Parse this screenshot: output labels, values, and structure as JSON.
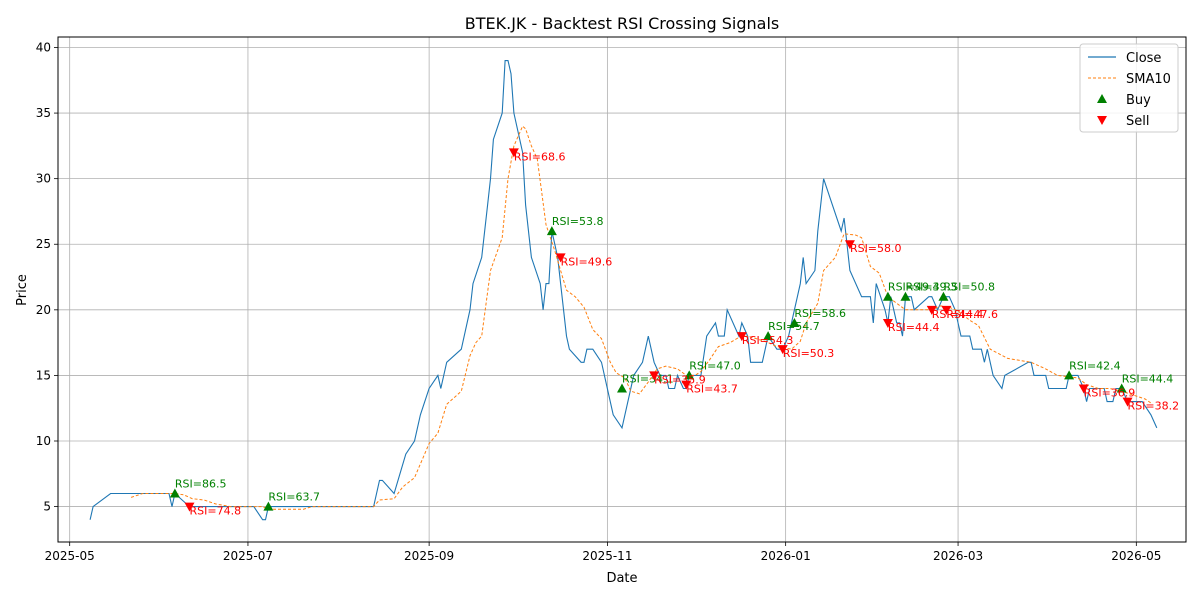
{
  "chart_data": {
    "type": "line",
    "title": "BTEK.JK - Backtest RSI Crossing Signals",
    "xlabel": "Date",
    "ylabel": "Price",
    "xlim": [
      "2025-04-27",
      "2026-05-18"
    ],
    "ylim": [
      2.3,
      40.8
    ],
    "x_ticks": [
      "2025-05-01",
      "2025-07-01",
      "2025-09-01",
      "2025-11-01",
      "2026-01-01",
      "2026-03-01",
      "2026-05-01"
    ],
    "x_tick_labels": [
      "2025-05",
      "2025-07",
      "2025-09",
      "2025-11",
      "2026-01",
      "2026-03",
      "2026-05"
    ],
    "y_ticks": [
      5,
      10,
      15,
      20,
      25,
      30,
      35,
      40
    ],
    "grid": true,
    "legend_position": "top-right",
    "legend": [
      "Close",
      "SMA10",
      "Buy",
      "Sell"
    ],
    "colors": {
      "close": "#1f77b4",
      "sma": "#ff7f0e",
      "buy": "#008000",
      "sell": "#ff0000",
      "grid": "#b0b0b0"
    },
    "series": [
      {
        "name": "Close",
        "style": "solid",
        "points": [
          [
            "2025-05-08",
            4.0
          ],
          [
            "2025-05-09",
            5.0
          ],
          [
            "2025-05-15",
            6.0
          ],
          [
            "2025-06-04",
            6.0
          ],
          [
            "2025-06-05",
            5.0
          ],
          [
            "2025-06-06",
            6.0
          ],
          [
            "2025-06-11",
            5.0
          ],
          [
            "2025-07-03",
            5.0
          ],
          [
            "2025-07-06",
            4.0
          ],
          [
            "2025-07-07",
            4.0
          ],
          [
            "2025-07-08",
            5.0
          ],
          [
            "2025-08-13",
            5.0
          ],
          [
            "2025-08-15",
            7.0
          ],
          [
            "2025-08-16",
            7.0
          ],
          [
            "2025-08-20",
            6.0
          ],
          [
            "2025-08-24",
            9.0
          ],
          [
            "2025-08-27",
            10.0
          ],
          [
            "2025-08-29",
            12.0
          ],
          [
            "2025-09-01",
            14.0
          ],
          [
            "2025-09-04",
            15.0
          ],
          [
            "2025-09-05",
            14.0
          ],
          [
            "2025-09-07",
            16.0
          ],
          [
            "2025-09-12",
            17.0
          ],
          [
            "2025-09-15",
            20.0
          ],
          [
            "2025-09-16",
            22.0
          ],
          [
            "2025-09-19",
            24.0
          ],
          [
            "2025-09-21",
            28.0
          ],
          [
            "2025-09-22",
            30.0
          ],
          [
            "2025-09-23",
            33.0
          ],
          [
            "2025-09-26",
            35.0
          ],
          [
            "2025-09-27",
            39.0
          ],
          [
            "2025-09-28",
            39.0
          ],
          [
            "2025-09-29",
            38.0
          ],
          [
            "2025-09-30",
            35.0
          ],
          [
            "2025-10-03",
            32.0
          ],
          [
            "2025-10-04",
            28.0
          ],
          [
            "2025-10-06",
            24.0
          ],
          [
            "2025-10-09",
            22.0
          ],
          [
            "2025-10-10",
            20.0
          ],
          [
            "2025-10-11",
            22.0
          ],
          [
            "2025-10-12",
            22.0
          ],
          [
            "2025-10-13",
            26.0
          ],
          [
            "2025-10-15",
            24.0
          ],
          [
            "2025-10-16",
            22.0
          ],
          [
            "2025-10-18",
            18.0
          ],
          [
            "2025-10-19",
            17.0
          ],
          [
            "2025-10-23",
            16.0
          ],
          [
            "2025-10-24",
            16.0
          ],
          [
            "2025-10-25",
            17.0
          ],
          [
            "2025-10-27",
            17.0
          ],
          [
            "2025-10-30",
            16.0
          ],
          [
            "2025-11-03",
            12.0
          ],
          [
            "2025-11-06",
            11.0
          ],
          [
            "2025-11-09",
            14.0
          ],
          [
            "2025-11-10",
            15.0
          ],
          [
            "2025-11-13",
            16.0
          ],
          [
            "2025-11-15",
            18.0
          ],
          [
            "2025-11-17",
            16.0
          ],
          [
            "2025-11-19",
            15.0
          ],
          [
            "2025-11-21",
            15.0
          ],
          [
            "2025-11-22",
            14.0
          ],
          [
            "2025-11-24",
            14.0
          ],
          [
            "2025-11-25",
            15.0
          ],
          [
            "2025-11-27",
            14.0
          ],
          [
            "2025-11-28",
            14.0
          ],
          [
            "2025-11-29",
            15.0
          ],
          [
            "2025-12-03",
            15.0
          ],
          [
            "2025-12-05",
            18.0
          ],
          [
            "2025-12-08",
            19.0
          ],
          [
            "2025-12-09",
            18.0
          ],
          [
            "2025-12-11",
            18.0
          ],
          [
            "2025-12-12",
            20.0
          ],
          [
            "2025-12-16",
            18.0
          ],
          [
            "2025-12-17",
            19.0
          ],
          [
            "2025-12-19",
            18.0
          ],
          [
            "2025-12-20",
            16.0
          ],
          [
            "2025-12-24",
            16.0
          ],
          [
            "2025-12-26",
            18.0
          ],
          [
            "2025-12-29",
            17.0
          ],
          [
            "2025-12-31",
            17.0
          ],
          [
            "2026-01-02",
            18.0
          ],
          [
            "2026-01-03",
            19.0
          ],
          [
            "2026-01-06",
            22.0
          ],
          [
            "2026-01-07",
            24.0
          ],
          [
            "2026-01-08",
            22.0
          ],
          [
            "2026-01-11",
            23.0
          ],
          [
            "2026-01-12",
            26.0
          ],
          [
            "2026-01-14",
            30.0
          ],
          [
            "2026-01-17",
            28.0
          ],
          [
            "2026-01-20",
            26.0
          ],
          [
            "2026-01-21",
            27.0
          ],
          [
            "2026-01-22",
            25.0
          ],
          [
            "2026-01-23",
            23.0
          ],
          [
            "2026-01-27",
            21.0
          ],
          [
            "2026-01-30",
            21.0
          ],
          [
            "2026-01-31",
            19.0
          ],
          [
            "2026-02-01",
            22.0
          ],
          [
            "2026-02-04",
            20.0
          ],
          [
            "2026-02-05",
            19.0
          ],
          [
            "2026-02-06",
            21.0
          ],
          [
            "2026-02-08",
            19.0
          ],
          [
            "2026-02-09",
            19.0
          ],
          [
            "2026-02-10",
            18.0
          ],
          [
            "2026-02-11",
            21.0
          ],
          [
            "2026-02-13",
            21.0
          ],
          [
            "2026-02-14",
            20.0
          ],
          [
            "2026-02-19",
            21.0
          ],
          [
            "2026-02-20",
            21.0
          ],
          [
            "2026-02-22",
            20.0
          ],
          [
            "2026-02-24",
            21.0
          ],
          [
            "2026-02-26",
            21.0
          ],
          [
            "2026-02-28",
            20.0
          ],
          [
            "2026-03-02",
            18.0
          ],
          [
            "2026-03-05",
            18.0
          ],
          [
            "2026-03-06",
            17.0
          ],
          [
            "2026-03-09",
            17.0
          ],
          [
            "2026-03-10",
            16.0
          ],
          [
            "2026-03-11",
            17.0
          ],
          [
            "2026-03-13",
            15.0
          ],
          [
            "2026-03-16",
            14.0
          ],
          [
            "2026-03-17",
            15.0
          ],
          [
            "2026-03-25",
            16.0
          ],
          [
            "2026-03-26",
            16.0
          ],
          [
            "2026-03-27",
            15.0
          ],
          [
            "2026-03-31",
            15.0
          ],
          [
            "2026-04-01",
            14.0
          ],
          [
            "2026-04-07",
            14.0
          ],
          [
            "2026-04-08",
            15.0
          ],
          [
            "2026-04-09",
            15.0
          ],
          [
            "2026-04-11",
            15.0
          ],
          [
            "2026-04-13",
            14.0
          ],
          [
            "2026-04-14",
            13.0
          ],
          [
            "2026-04-15",
            14.0
          ],
          [
            "2026-04-20",
            14.0
          ],
          [
            "2026-04-21",
            13.0
          ],
          [
            "2026-04-23",
            13.0
          ],
          [
            "2026-04-24",
            14.0
          ],
          [
            "2026-04-26",
            14.0
          ],
          [
            "2026-04-28",
            13.0
          ],
          [
            "2026-04-30",
            13.0
          ],
          [
            "2026-05-03",
            13.0
          ],
          [
            "2026-05-06",
            12.0
          ],
          [
            "2026-05-08",
            11.0
          ]
        ]
      },
      {
        "name": "SMA10",
        "style": "dashed",
        "points": [
          [
            "2025-05-22",
            5.7
          ],
          [
            "2025-05-26",
            6.0
          ],
          [
            "2025-06-06",
            6.0
          ],
          [
            "2025-06-09",
            5.9
          ],
          [
            "2025-06-12",
            5.6
          ],
          [
            "2025-06-16",
            5.5
          ],
          [
            "2025-06-20",
            5.2
          ],
          [
            "2025-06-25",
            5.0
          ],
          [
            "2025-07-06",
            5.0
          ],
          [
            "2025-07-08",
            4.8
          ],
          [
            "2025-07-20",
            4.8
          ],
          [
            "2025-07-23",
            5.0
          ],
          [
            "2025-08-13",
            5.0
          ],
          [
            "2025-08-15",
            5.5
          ],
          [
            "2025-08-20",
            5.6
          ],
          [
            "2025-08-23",
            6.5
          ],
          [
            "2025-08-27",
            7.2
          ],
          [
            "2025-09-01",
            9.8
          ],
          [
            "2025-09-04",
            10.6
          ],
          [
            "2025-09-07",
            12.8
          ],
          [
            "2025-09-12",
            13.8
          ],
          [
            "2025-09-15",
            16.5
          ],
          [
            "2025-09-17",
            17.5
          ],
          [
            "2025-09-19",
            18.0
          ],
          [
            "2025-09-22",
            23.0
          ],
          [
            "2025-09-26",
            25.5
          ],
          [
            "2025-09-28",
            30.0
          ],
          [
            "2025-09-30",
            32.5
          ],
          [
            "2025-10-03",
            34.0
          ],
          [
            "2025-10-04",
            33.8
          ],
          [
            "2025-10-06",
            32.5
          ],
          [
            "2025-10-08",
            31.5
          ],
          [
            "2025-10-11",
            26.5
          ],
          [
            "2025-10-14",
            24.5
          ],
          [
            "2025-10-16",
            23.0
          ],
          [
            "2025-10-18",
            21.5
          ],
          [
            "2025-10-21",
            21.0
          ],
          [
            "2025-10-24",
            20.2
          ],
          [
            "2025-10-27",
            18.5
          ],
          [
            "2025-10-30",
            17.8
          ],
          [
            "2025-11-02",
            16.0
          ],
          [
            "2025-11-04",
            15.2
          ],
          [
            "2025-11-07",
            14.8
          ],
          [
            "2025-11-09",
            13.8
          ],
          [
            "2025-11-12",
            13.6
          ],
          [
            "2025-11-15",
            14.5
          ],
          [
            "2025-11-18",
            15.5
          ],
          [
            "2025-11-21",
            15.7
          ],
          [
            "2025-11-25",
            15.5
          ],
          [
            "2025-11-28",
            15.0
          ],
          [
            "2025-12-01",
            15.0
          ],
          [
            "2025-12-03",
            15.3
          ],
          [
            "2025-12-06",
            16.2
          ],
          [
            "2025-12-09",
            17.2
          ],
          [
            "2025-12-13",
            17.5
          ],
          [
            "2025-12-16",
            17.9
          ],
          [
            "2025-12-19",
            18.0
          ],
          [
            "2025-12-22",
            17.8
          ],
          [
            "2025-12-26",
            17.5
          ],
          [
            "2025-12-29",
            17.2
          ],
          [
            "2026-01-03",
            17.0
          ],
          [
            "2026-01-06",
            17.6
          ],
          [
            "2026-01-08",
            19.0
          ],
          [
            "2026-01-12",
            20.5
          ],
          [
            "2026-01-14",
            23.0
          ],
          [
            "2026-01-18",
            24.0
          ],
          [
            "2026-01-21",
            25.8
          ],
          [
            "2026-01-25",
            25.7
          ],
          [
            "2026-01-27",
            25.5
          ],
          [
            "2026-01-30",
            23.3
          ],
          [
            "2026-02-02",
            22.8
          ],
          [
            "2026-02-05",
            21.0
          ],
          [
            "2026-02-08",
            20.5
          ],
          [
            "2026-02-11",
            20.0
          ],
          [
            "2026-02-20",
            20.0
          ],
          [
            "2026-02-23",
            20.3
          ],
          [
            "2026-02-26",
            20.2
          ],
          [
            "2026-03-01",
            19.9
          ],
          [
            "2026-03-05",
            19.2
          ],
          [
            "2026-03-08",
            18.8
          ],
          [
            "2026-03-12",
            17.0
          ],
          [
            "2026-03-18",
            16.3
          ],
          [
            "2026-03-26",
            16.0
          ],
          [
            "2026-03-31",
            15.5
          ],
          [
            "2026-04-04",
            15.0
          ],
          [
            "2026-04-11",
            14.8
          ],
          [
            "2026-04-14",
            14.3
          ],
          [
            "2026-04-18",
            14.0
          ],
          [
            "2026-04-22",
            14.0
          ],
          [
            "2026-04-26",
            13.8
          ],
          [
            "2026-04-30",
            13.5
          ],
          [
            "2026-05-04",
            13.2
          ],
          [
            "2026-05-06",
            12.9
          ]
        ]
      }
    ],
    "buy_signals": [
      {
        "date": "2025-06-06",
        "price": 6.0,
        "label": "RSI=86.5"
      },
      {
        "date": "2025-07-08",
        "price": 5.0,
        "label": "RSI=63.7"
      },
      {
        "date": "2025-10-13",
        "price": 26.0,
        "label": "RSI=53.8"
      },
      {
        "date": "2025-11-06",
        "price": 14.0,
        "label": "RSI=34.1"
      },
      {
        "date": "2025-11-29",
        "price": 15.0,
        "label": "RSI=47.0"
      },
      {
        "date": "2025-12-26",
        "price": 18.0,
        "label": "RSI=54.7"
      },
      {
        "date": "2026-01-04",
        "price": 19.0,
        "label": "RSI=58.6"
      },
      {
        "date": "2026-02-05",
        "price": 21.0,
        "label": "RSI=49.3"
      },
      {
        "date": "2026-02-11",
        "price": 21.0,
        "label": "RSI=49.3"
      },
      {
        "date": "2026-02-24",
        "price": 21.0,
        "label": "RSI=50.8"
      },
      {
        "date": "2026-04-08",
        "price": 15.0,
        "label": "RSI=42.4"
      },
      {
        "date": "2026-04-26",
        "price": 14.0,
        "label": "RSI=44.4"
      }
    ],
    "sell_signals": [
      {
        "date": "2025-06-11",
        "price": 5.0,
        "label": "RSI=74.8"
      },
      {
        "date": "2025-09-30",
        "price": 32.0,
        "label": "RSI=68.6"
      },
      {
        "date": "2025-10-16",
        "price": 24.0,
        "label": "RSI=49.6"
      },
      {
        "date": "2025-11-17",
        "price": 15.0,
        "label": "RSI=35.9"
      },
      {
        "date": "2025-11-28",
        "price": 14.3,
        "label": "RSI=43.7"
      },
      {
        "date": "2025-12-17",
        "price": 18.0,
        "label": "RSI=54.3"
      },
      {
        "date": "2025-12-31",
        "price": 17.0,
        "label": "RSI=50.3"
      },
      {
        "date": "2026-01-23",
        "price": 25.0,
        "label": "RSI=58.0"
      },
      {
        "date": "2026-02-05",
        "price": 19.0,
        "label": "RSI=44.4"
      },
      {
        "date": "2026-02-20",
        "price": 20.0,
        "label": "RSI=44.4"
      },
      {
        "date": "2026-02-25",
        "price": 20.0,
        "label": "RSI=47.6"
      },
      {
        "date": "2026-04-13",
        "price": 14.0,
        "label": "RSI=36.9"
      },
      {
        "date": "2026-04-28",
        "price": 13.0,
        "label": "RSI=38.2"
      }
    ]
  }
}
